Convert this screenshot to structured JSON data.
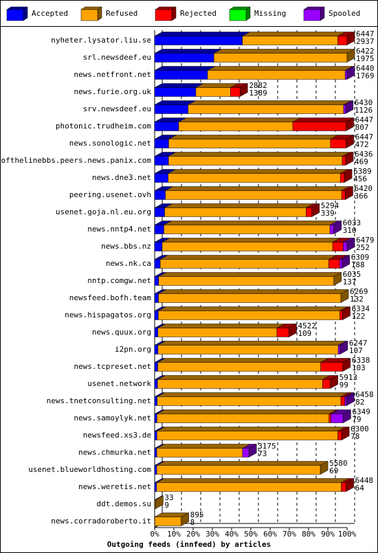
{
  "chart_data": {
    "type": "bar",
    "stacked": true,
    "orientation": "horizontal",
    "x_label": "Outgoing feeds (innfeed) by articles",
    "categories": [
      "nyheter.lysator.liu.se",
      "srl.newsdeef.eu",
      "news.netfront.net",
      "news.furie.org.uk",
      "srv.newsdeef.eu",
      "photonic.trudheim.com",
      "news.sonologic.net",
      "endofthelinebbs.peers.news.panix.com",
      "news.dne3.net",
      "peering.usenet.ovh",
      "usenet.goja.nl.eu.org",
      "news.nntp4.net",
      "news.bbs.nz",
      "news.nk.ca",
      "nntp.comgw.net",
      "newsfeed.bofh.team",
      "news.hispagatos.org",
      "news.quux.org",
      "i2pn.org",
      "news.tcpreset.net",
      "usenet.network",
      "news.tnetconsulting.net",
      "news.samoylyk.net",
      "newsfeed.xs3.de",
      "news.chmurka.net",
      "usenet.blueworldhosting.com",
      "news.weretis.net",
      "ddt.demos.su",
      "news.corradoroberto.it"
    ],
    "series": [
      {
        "name": "Accepted",
        "color": "#0000ff",
        "values": [
          45.6,
          30.8,
          27.5,
          21.4,
          17.4,
          12.5,
          7.3,
          7.2,
          7.0,
          5.6,
          5.2,
          4.8,
          3.9,
          2.9,
          2.1,
          2.0,
          1.9,
          1.7,
          1.7,
          1.6,
          1.5,
          1.3,
          1.2,
          1.2,
          1.1,
          1.1,
          1.0,
          0.1,
          0.1
        ]
      },
      {
        "name": "Refused",
        "color": "#ffa500",
        "values": [
          49.6,
          69.2,
          71.5,
          18.0,
          80.8,
          59.3,
          84.1,
          90.3,
          89.5,
          91.6,
          73.5,
          86.3,
          88.6,
          87.6,
          91.0,
          94.8,
          94.3,
          61.8,
          93.7,
          84.7,
          85.8,
          95.5,
          89.4,
          94.0,
          44.6,
          85.0,
          96.0,
          0.4,
          13.7
        ]
      },
      {
        "name": "Rejected",
        "color": "#ff0000",
        "values": [
          4.8,
          0,
          0,
          5.0,
          0,
          27.7,
          8.1,
          1.8,
          2.1,
          1.9,
          3.0,
          0,
          5.5,
          5.7,
          0,
          0,
          1.5,
          6.3,
          0,
          11.5,
          4.0,
          2.0,
          1.0,
          2.0,
          0,
          0,
          2.5,
          0,
          0
        ]
      },
      {
        "name": "Missing",
        "color": "#00ff00",
        "values": [
          0,
          0,
          0,
          0,
          0,
          0,
          0,
          0,
          0,
          0,
          0,
          0,
          0,
          0,
          0,
          0,
          0,
          0,
          0,
          0,
          0,
          0,
          0,
          0,
          0,
          0,
          0,
          0,
          0
        ]
      },
      {
        "name": "Spooled",
        "color": "#9900ff",
        "values": [
          0,
          0,
          1.0,
          0,
          1.0,
          0,
          0,
          0,
          0,
          0,
          0,
          2.0,
          2.0,
          1.2,
          0,
          0,
          0,
          0,
          1.0,
          0,
          0,
          0.9,
          6.4,
          0,
          3.3,
          0,
          0,
          0,
          0
        ]
      }
    ],
    "offered": [
      6447,
      6422,
      6440,
      2882,
      6430,
      6447,
      6447,
      6436,
      6389,
      6420,
      5294,
      6033,
      6479,
      6309,
      6035,
      6269,
      6334,
      4522,
      6247,
      6338,
      5913,
      6458,
      6349,
      6300,
      3175,
      5580,
      6448,
      33,
      895
    ],
    "accepted_counts": [
      2937,
      1975,
      1769,
      1389,
      1126,
      807,
      472,
      469,
      456,
      366,
      339,
      310,
      252,
      188,
      137,
      132,
      122,
      109,
      107,
      103,
      99,
      82,
      79,
      78,
      73,
      69,
      64,
      9,
      8
    ],
    "xlim": [
      0,
      100
    ],
    "xticks": [
      {
        "value": 0,
        "label": "0%"
      },
      {
        "value": 10,
        "label": "10%"
      },
      {
        "value": 20,
        "label": "20%"
      },
      {
        "value": 30,
        "label": "30%"
      },
      {
        "value": 40,
        "label": "40%"
      },
      {
        "value": 50,
        "label": "50%"
      },
      {
        "value": 60,
        "label": "60%"
      },
      {
        "value": 70,
        "label": "70%"
      },
      {
        "value": 80,
        "label": "80%"
      },
      {
        "value": 90,
        "label": "90%"
      },
      {
        "value": 100,
        "label": "100%"
      }
    ],
    "grid": true
  }
}
